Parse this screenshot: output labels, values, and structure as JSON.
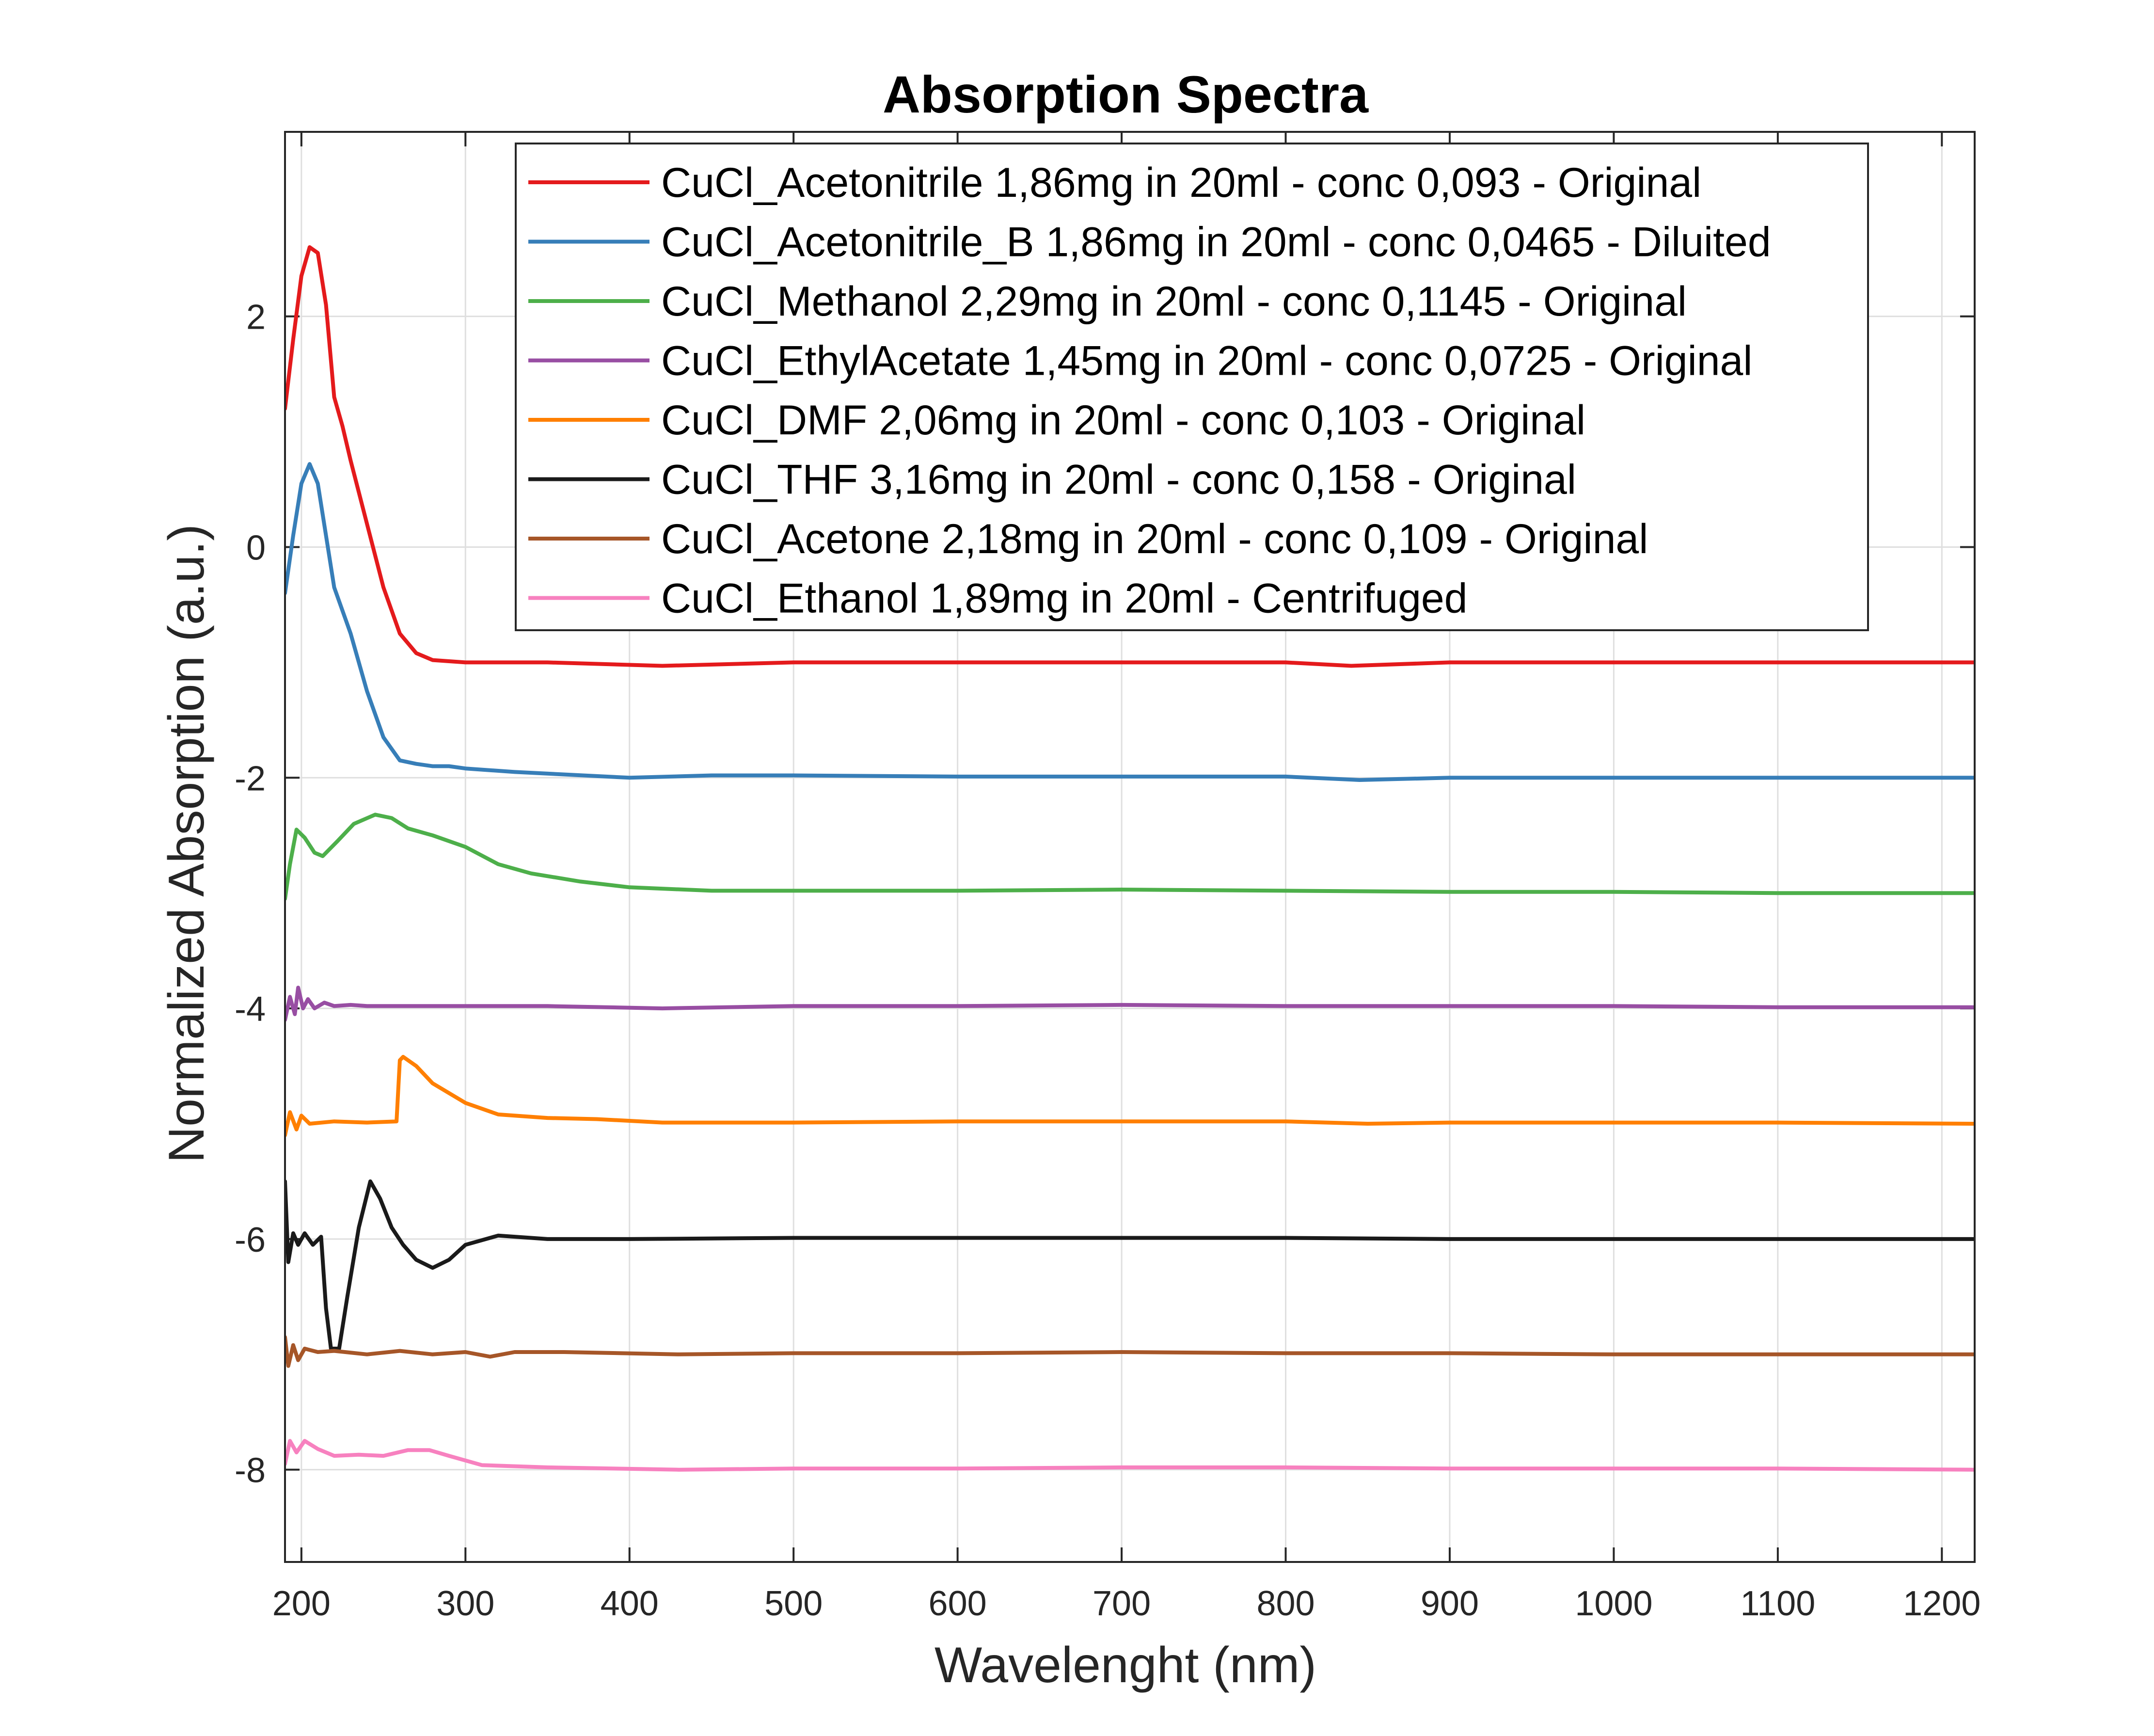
{
  "chart_data": {
    "type": "line",
    "title": "Absorption Spectra",
    "xlabel": "Wavelenght (nm)",
    "ylabel": "Normalized Absorption (a.u.)",
    "xlim": [
      190,
      1220
    ],
    "ylim": [
      -8.8,
      3.6
    ],
    "xticks": [
      200,
      300,
      400,
      500,
      600,
      700,
      800,
      900,
      1000,
      1100,
      1200
    ],
    "yticks": [
      2,
      0,
      -2,
      -4,
      -6,
      -8
    ],
    "grid": true,
    "legend_position": "top-right",
    "series": [
      {
        "name": "CuCl_Acetonitrile 1,86mg in 20ml - conc 0,093 - Original",
        "color": "#e41a1c",
        "points": [
          [
            190,
            1.2
          ],
          [
            195,
            1.8
          ],
          [
            200,
            2.35
          ],
          [
            205,
            2.6
          ],
          [
            210,
            2.55
          ],
          [
            215,
            2.1
          ],
          [
            220,
            1.3
          ],
          [
            225,
            1.05
          ],
          [
            230,
            0.75
          ],
          [
            240,
            0.2
          ],
          [
            250,
            -0.35
          ],
          [
            260,
            -0.75
          ],
          [
            270,
            -0.92
          ],
          [
            280,
            -0.98
          ],
          [
            300,
            -1.0
          ],
          [
            350,
            -1.0
          ],
          [
            420,
            -1.03
          ],
          [
            500,
            -1.0
          ],
          [
            600,
            -1.0
          ],
          [
            700,
            -1.0
          ],
          [
            800,
            -1.0
          ],
          [
            840,
            -1.03
          ],
          [
            900,
            -1.0
          ],
          [
            1000,
            -1.0
          ],
          [
            1100,
            -1.0
          ],
          [
            1220,
            -1.0
          ]
        ]
      },
      {
        "name": "CuCl_Acetonitrile_B 1,86mg in 20ml - conc 0,0465 - Diluited",
        "color": "#377eb8",
        "points": [
          [
            190,
            -0.4
          ],
          [
            195,
            0.1
          ],
          [
            200,
            0.55
          ],
          [
            205,
            0.72
          ],
          [
            210,
            0.55
          ],
          [
            215,
            0.1
          ],
          [
            220,
            -0.35
          ],
          [
            230,
            -0.75
          ],
          [
            240,
            -1.25
          ],
          [
            250,
            -1.65
          ],
          [
            260,
            -1.85
          ],
          [
            270,
            -1.88
          ],
          [
            280,
            -1.9
          ],
          [
            290,
            -1.9
          ],
          [
            300,
            -1.92
          ],
          [
            330,
            -1.95
          ],
          [
            400,
            -2.0
          ],
          [
            450,
            -1.98
          ],
          [
            500,
            -1.98
          ],
          [
            600,
            -1.99
          ],
          [
            700,
            -1.99
          ],
          [
            800,
            -1.99
          ],
          [
            845,
            -2.02
          ],
          [
            900,
            -2.0
          ],
          [
            1000,
            -2.0
          ],
          [
            1100,
            -2.0
          ],
          [
            1220,
            -2.0
          ]
        ]
      },
      {
        "name": "CuCl_Methanol 2,29mg in 20ml - conc 0,1145 - Original",
        "color": "#4daf4a",
        "points": [
          [
            190,
            -3.05
          ],
          [
            193,
            -2.75
          ],
          [
            197,
            -2.45
          ],
          [
            202,
            -2.52
          ],
          [
            208,
            -2.65
          ],
          [
            213,
            -2.68
          ],
          [
            222,
            -2.55
          ],
          [
            232,
            -2.4
          ],
          [
            245,
            -2.32
          ],
          [
            255,
            -2.35
          ],
          [
            265,
            -2.44
          ],
          [
            280,
            -2.5
          ],
          [
            300,
            -2.6
          ],
          [
            320,
            -2.75
          ],
          [
            340,
            -2.83
          ],
          [
            370,
            -2.9
          ],
          [
            400,
            -2.95
          ],
          [
            450,
            -2.98
          ],
          [
            500,
            -2.98
          ],
          [
            600,
            -2.98
          ],
          [
            700,
            -2.97
          ],
          [
            800,
            -2.98
          ],
          [
            900,
            -2.99
          ],
          [
            1000,
            -2.99
          ],
          [
            1100,
            -3.0
          ],
          [
            1220,
            -3.0
          ]
        ]
      },
      {
        "name": "CuCl_EthylAcetate 1,45mg in 20ml - conc 0,0725 - Original",
        "color": "#984ea3",
        "points": [
          [
            190,
            -4.1
          ],
          [
            193,
            -3.9
          ],
          [
            196,
            -4.05
          ],
          [
            198,
            -3.82
          ],
          [
            201,
            -4.0
          ],
          [
            204,
            -3.92
          ],
          [
            208,
            -4.0
          ],
          [
            214,
            -3.95
          ],
          [
            220,
            -3.98
          ],
          [
            230,
            -3.97
          ],
          [
            240,
            -3.98
          ],
          [
            300,
            -3.98
          ],
          [
            350,
            -3.98
          ],
          [
            420,
            -4.0
          ],
          [
            500,
            -3.98
          ],
          [
            600,
            -3.98
          ],
          [
            700,
            -3.97
          ],
          [
            800,
            -3.98
          ],
          [
            900,
            -3.98
          ],
          [
            1000,
            -3.98
          ],
          [
            1100,
            -3.99
          ],
          [
            1220,
            -3.99
          ]
        ]
      },
      {
        "name": "CuCl_DMF 2,06mg in 20ml - conc 0,103 - Original",
        "color": "#ff7f00",
        "points": [
          [
            190,
            -5.1
          ],
          [
            193,
            -4.9
          ],
          [
            197,
            -5.05
          ],
          [
            200,
            -4.93
          ],
          [
            205,
            -5.0
          ],
          [
            220,
            -4.98
          ],
          [
            240,
            -4.99
          ],
          [
            258,
            -4.98
          ],
          [
            260,
            -4.45
          ],
          [
            262,
            -4.42
          ],
          [
            270,
            -4.5
          ],
          [
            280,
            -4.65
          ],
          [
            300,
            -4.82
          ],
          [
            320,
            -4.92
          ],
          [
            350,
            -4.95
          ],
          [
            380,
            -4.96
          ],
          [
            420,
            -4.99
          ],
          [
            500,
            -4.99
          ],
          [
            600,
            -4.98
          ],
          [
            700,
            -4.98
          ],
          [
            800,
            -4.98
          ],
          [
            850,
            -5.0
          ],
          [
            900,
            -4.99
          ],
          [
            1000,
            -4.99
          ],
          [
            1100,
            -4.99
          ],
          [
            1220,
            -5.0
          ]
        ]
      },
      {
        "name": "CuCl_THF 3,16mg in 20ml - conc 0,158 - Original",
        "color": "#1a1a1a",
        "points": [
          [
            190,
            -5.5
          ],
          [
            192,
            -6.2
          ],
          [
            195,
            -5.95
          ],
          [
            198,
            -6.05
          ],
          [
            202,
            -5.95
          ],
          [
            207,
            -6.05
          ],
          [
            212,
            -5.98
          ],
          [
            215,
            -6.6
          ],
          [
            218,
            -6.95
          ],
          [
            223,
            -6.95
          ],
          [
            228,
            -6.5
          ],
          [
            235,
            -5.9
          ],
          [
            242,
            -5.5
          ],
          [
            248,
            -5.65
          ],
          [
            255,
            -5.9
          ],
          [
            262,
            -6.05
          ],
          [
            270,
            -6.18
          ],
          [
            280,
            -6.25
          ],
          [
            290,
            -6.18
          ],
          [
            300,
            -6.05
          ],
          [
            320,
            -5.97
          ],
          [
            350,
            -6.0
          ],
          [
            400,
            -6.0
          ],
          [
            500,
            -5.99
          ],
          [
            600,
            -5.99
          ],
          [
            700,
            -5.99
          ],
          [
            800,
            -5.99
          ],
          [
            900,
            -6.0
          ],
          [
            1000,
            -6.0
          ],
          [
            1100,
            -6.0
          ],
          [
            1220,
            -6.0
          ]
        ]
      },
      {
        "name": "CuCl_Acetone 2,18mg in 20ml - conc 0,109 - Original",
        "color": "#a65628",
        "points": [
          [
            190,
            -6.85
          ],
          [
            192,
            -7.1
          ],
          [
            195,
            -6.92
          ],
          [
            198,
            -7.05
          ],
          [
            202,
            -6.95
          ],
          [
            210,
            -6.98
          ],
          [
            220,
            -6.97
          ],
          [
            240,
            -7.0
          ],
          [
            260,
            -6.97
          ],
          [
            280,
            -7.0
          ],
          [
            300,
            -6.98
          ],
          [
            315,
            -7.02
          ],
          [
            330,
            -6.98
          ],
          [
            360,
            -6.98
          ],
          [
            430,
            -7.0
          ],
          [
            500,
            -6.99
          ],
          [
            600,
            -6.99
          ],
          [
            700,
            -6.98
          ],
          [
            800,
            -6.99
          ],
          [
            900,
            -6.99
          ],
          [
            1000,
            -7.0
          ],
          [
            1100,
            -7.0
          ],
          [
            1220,
            -7.0
          ]
        ]
      },
      {
        "name": "CuCl_Ethanol 1,89mg in 20ml - Centrifuged",
        "color": "#f781bf",
        "points": [
          [
            190,
            -7.95
          ],
          [
            193,
            -7.75
          ],
          [
            197,
            -7.85
          ],
          [
            202,
            -7.75
          ],
          [
            210,
            -7.82
          ],
          [
            220,
            -7.88
          ],
          [
            235,
            -7.87
          ],
          [
            250,
            -7.88
          ],
          [
            265,
            -7.83
          ],
          [
            278,
            -7.83
          ],
          [
            290,
            -7.88
          ],
          [
            310,
            -7.96
          ],
          [
            350,
            -7.98
          ],
          [
            430,
            -8.0
          ],
          [
            500,
            -7.99
          ],
          [
            600,
            -7.99
          ],
          [
            700,
            -7.98
          ],
          [
            800,
            -7.98
          ],
          [
            900,
            -7.99
          ],
          [
            1000,
            -7.99
          ],
          [
            1100,
            -7.99
          ],
          [
            1220,
            -8.0
          ]
        ]
      }
    ]
  }
}
